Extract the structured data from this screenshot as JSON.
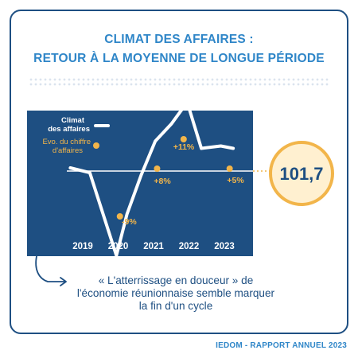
{
  "title": {
    "line1": "CLIMAT DES AFFAIRES :",
    "line2": "RETOUR À LA MOYENNE DE LONGUE PÉRIODE"
  },
  "quote": "« L'atterrissage en douceur » de l'économie réunionnaise semble marquer la fin d'un cycle",
  "footer": "IEDOM - RAPPORT ANNUEL 2023",
  "colors": {
    "frame": "#1e4f82",
    "title": "#2f86c8",
    "panel": "#1e4f82",
    "line": "#ffffff",
    "accent": "#f2b54a",
    "badge_fill": "#fff0d0"
  },
  "chart_data": {
    "type": "line",
    "x_labels": [
      "2019",
      "2020",
      "2021",
      "2022",
      "2023"
    ],
    "legend": {
      "climate_line1": "Climat",
      "climate_line2": "des affaires",
      "turnover_line1": "Evo. du chiffre",
      "turnover_line2": "d'affaires"
    },
    "series": [
      {
        "name": "Climat des affaires",
        "points": [
          [
            2018.65,
            103
          ],
          [
            2019.2,
            101
          ],
          [
            2019.95,
            67
          ],
          [
            2020.25,
            84
          ],
          [
            2020.65,
            100
          ],
          [
            2021.05,
            114
          ],
          [
            2021.5,
            121
          ],
          [
            2021.95,
            130
          ],
          [
            2022.35,
            111
          ],
          [
            2022.9,
            112
          ],
          [
            2023.25,
            111
          ]
        ]
      },
      {
        "name": "Evo. du chiffre d'affaires",
        "points": [
          {
            "x": 2020.05,
            "label": "-9%"
          },
          {
            "x": 2021.1,
            "label": "+8%"
          },
          {
            "x": 2021.85,
            "label": "+11%"
          },
          {
            "x": 2023.15,
            "label": "+5%"
          }
        ]
      }
    ],
    "reference_line": {
      "value": 101.7,
      "label": "101,7"
    }
  }
}
